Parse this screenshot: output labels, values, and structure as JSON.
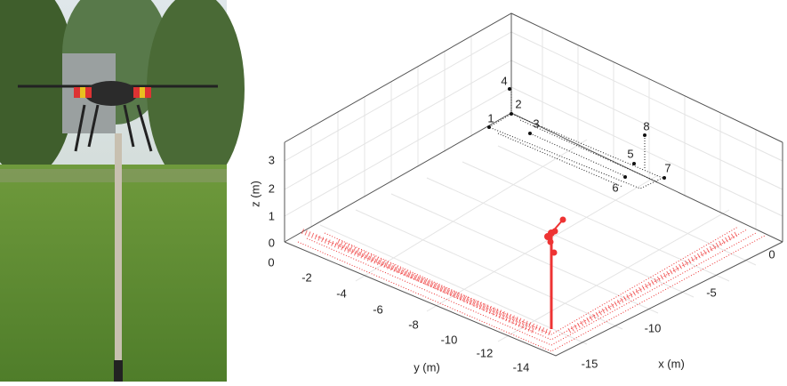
{
  "figure": {
    "axes": {
      "x_label": "x (m)",
      "y_label": "y (m)",
      "z_label": "z (m)",
      "x_tick_labels": [
        "-15",
        "-10",
        "-5",
        "0"
      ],
      "y_tick_labels": [
        "0",
        "-2",
        "-4",
        "-6",
        "-8",
        "-10",
        "-12",
        "-14"
      ],
      "z_tick_labels": [
        "0",
        "1",
        "2",
        "3"
      ]
    },
    "point_labels": [
      "1",
      "2",
      "3",
      "4",
      "5",
      "6",
      "7",
      "8"
    ]
  }
}
